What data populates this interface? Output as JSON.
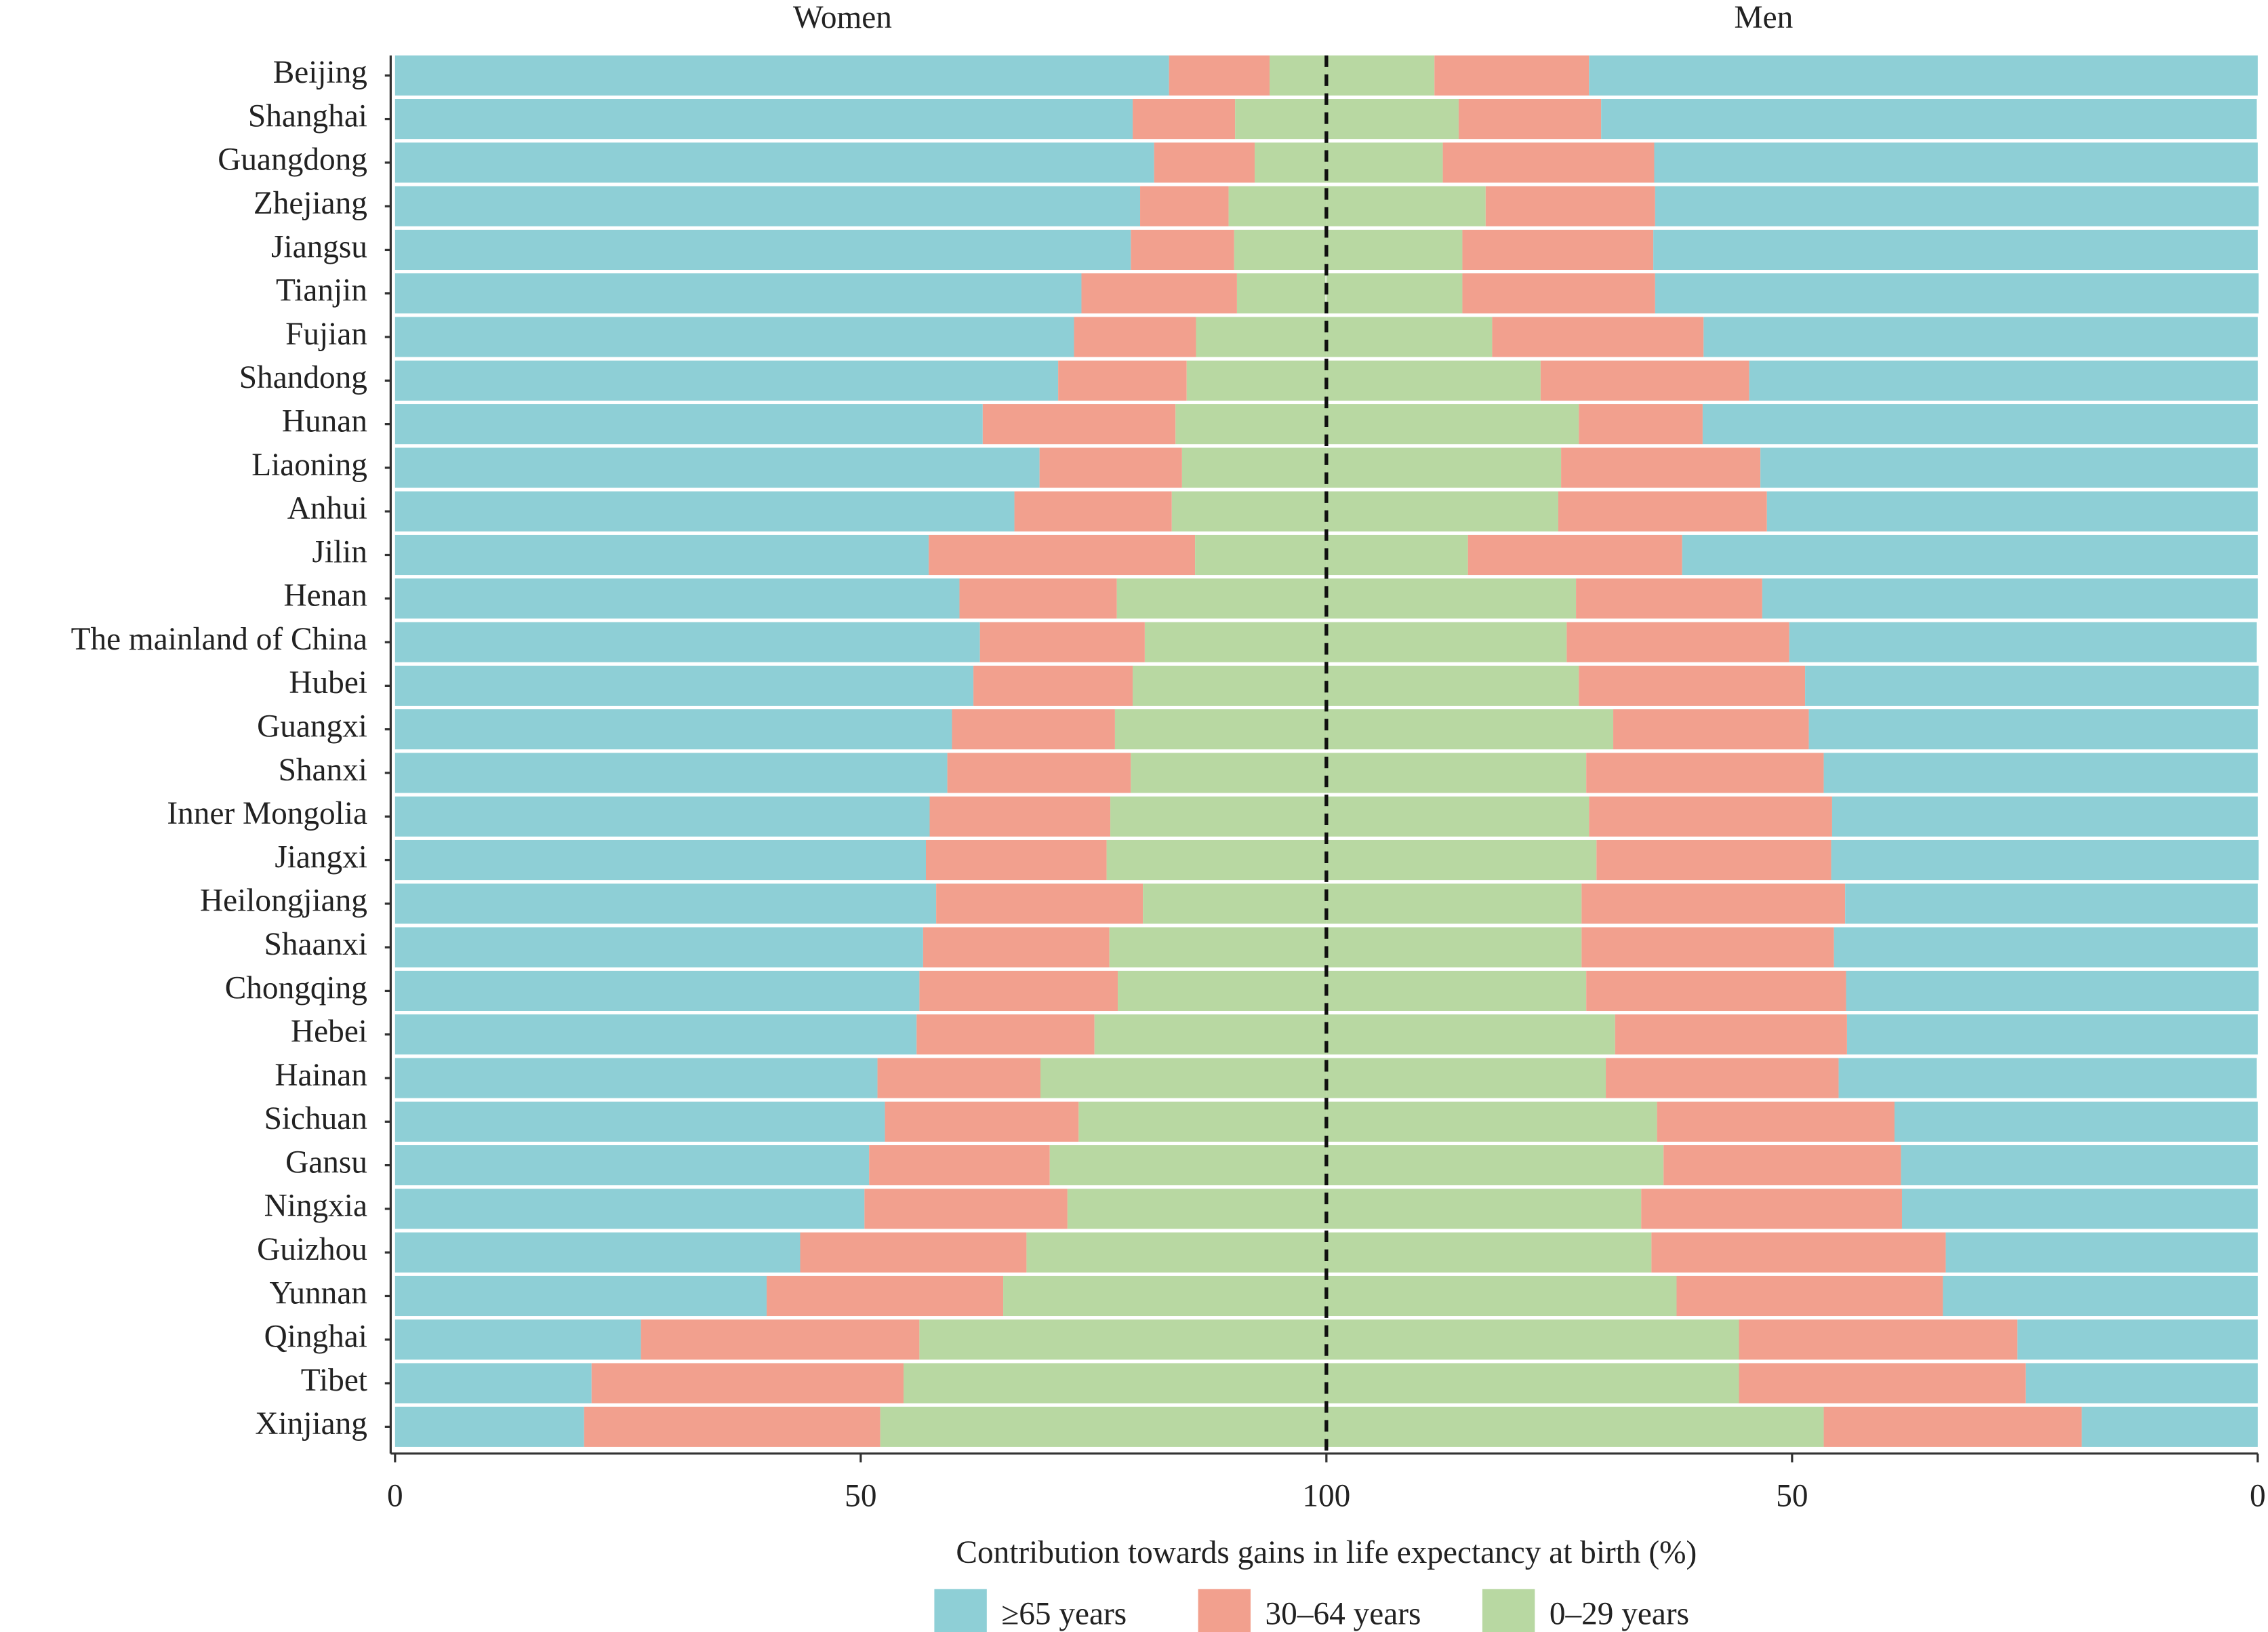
{
  "chart_data": [
    {
      "type": "bar",
      "orientation": "horizontal",
      "stacked": true,
      "title": "Women",
      "x_label": "Contribution towards gains in life expectancy at birth (%)",
      "categories": [
        "Beijing",
        "Shanghai",
        "Guangdong",
        "Zhejiang",
        "Jiangsu",
        "Tianjin",
        "Fujian",
        "Shandong",
        "Hunan",
        "Liaoning",
        "Anhui",
        "Jilin",
        "Henan",
        "The mainland of China",
        "Hubei",
        "Guangxi",
        "Shanxi",
        "Inner Mongolia",
        "Jiangxi",
        "Heilongjiang",
        "Shaanxi",
        "Chongqing",
        "Hebei",
        "Hainan",
        "Sichuan",
        "Gansu",
        "Ningxia",
        "Guizhou",
        "Yunnan",
        "Qinghai",
        "Tibet",
        "Xinjiang"
      ],
      "xlim": [
        0,
        100
      ],
      "xticks": [
        0,
        50,
        100
      ],
      "series": [
        {
          "name": "≥65 years",
          "color": "#8ecfd6",
          "values": [
            83.1,
            79.2,
            81.5,
            80.0,
            79.0,
            73.7,
            72.9,
            71.2,
            63.1,
            69.2,
            66.5,
            57.3,
            60.6,
            62.8,
            62.1,
            59.8,
            59.3,
            57.4,
            57.0,
            58.1,
            56.7,
            56.3,
            56.0,
            51.8,
            52.6,
            50.9,
            50.4,
            43.5,
            39.9,
            26.4,
            21.1,
            20.3
          ]
        },
        {
          "name": "30–64 years",
          "color": "#f2a08e",
          "values": [
            10.8,
            11.0,
            10.8,
            9.5,
            11.1,
            16.7,
            13.1,
            13.8,
            20.7,
            15.3,
            16.9,
            28.6,
            16.9,
            17.7,
            17.1,
            17.5,
            19.7,
            19.4,
            19.4,
            22.2,
            20.0,
            21.3,
            19.1,
            17.5,
            20.8,
            19.4,
            21.8,
            24.3,
            25.4,
            29.9,
            33.5,
            31.8
          ]
        },
        {
          "name": "0–29 years",
          "color": "#b8d8a2",
          "values": [
            6.1,
            9.9,
            7.7,
            10.5,
            9.9,
            9.5,
            14.0,
            15.0,
            16.3,
            15.5,
            16.6,
            14.1,
            22.5,
            19.6,
            20.8,
            22.7,
            21.0,
            23.2,
            23.6,
            19.7,
            23.3,
            22.4,
            24.9,
            30.7,
            26.6,
            29.7,
            27.9,
            32.2,
            34.7,
            43.7,
            45.4,
            47.9
          ]
        }
      ]
    },
    {
      "type": "bar",
      "orientation": "horizontal",
      "stacked": true,
      "title": "Men",
      "xlim": [
        100,
        0
      ],
      "xticks": [
        50,
        0
      ],
      "series": [
        {
          "name": "0–29 years",
          "color": "#b8d8a2",
          "values": [
            11.6,
            14.2,
            12.5,
            17.1,
            14.6,
            14.6,
            17.8,
            23.0,
            27.1,
            25.2,
            24.9,
            15.2,
            26.8,
            25.8,
            27.1,
            30.8,
            27.9,
            28.2,
            29.0,
            27.4,
            27.4,
            27.9,
            31.0,
            30.0,
            35.5,
            36.2,
            33.8,
            34.9,
            37.6,
            44.3,
            44.3,
            53.4
          ]
        },
        {
          "name": "30–64 years",
          "color": "#f2a08e",
          "values": [
            16.6,
            15.3,
            22.7,
            18.2,
            20.5,
            20.7,
            22.7,
            22.4,
            13.3,
            21.4,
            22.4,
            23.0,
            20.0,
            23.9,
            24.3,
            21.0,
            25.5,
            26.1,
            25.2,
            28.3,
            27.1,
            27.9,
            24.9,
            25.0,
            25.5,
            25.5,
            28.0,
            31.6,
            28.6,
            29.9,
            30.8,
            27.7
          ]
        },
        {
          "name": "≥65 years",
          "color": "#8ecfd6",
          "values": [
            71.8,
            70.4,
            64.8,
            64.8,
            64.9,
            64.8,
            59.5,
            54.6,
            59.6,
            53.4,
            52.7,
            61.8,
            53.2,
            50.2,
            48.7,
            48.2,
            46.6,
            45.7,
            45.9,
            44.3,
            45.5,
            44.3,
            44.1,
            44.9,
            39.0,
            38.3,
            38.2,
            33.5,
            33.8,
            25.8,
            24.9,
            18.9
          ]
        }
      ]
    }
  ]
}
